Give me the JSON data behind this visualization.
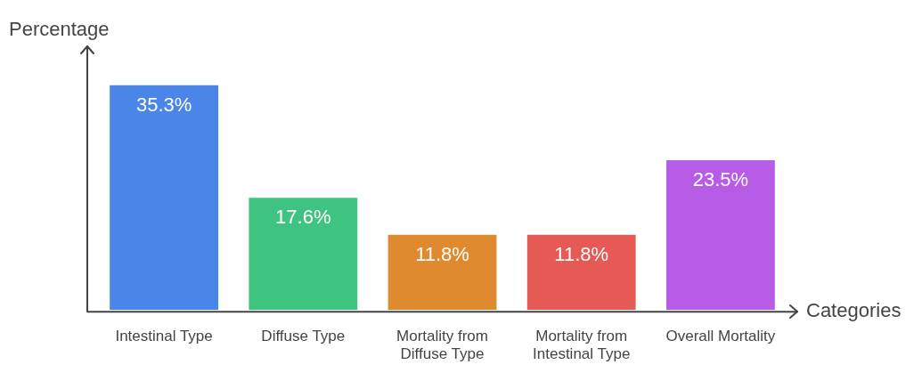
{
  "chart_data": {
    "type": "bar",
    "xlabel": "Categories",
    "ylabel": "Percentage",
    "categories": [
      "Intestinal Type",
      "Diffuse Type",
      "Mortality from Diffuse Type",
      "Mortality from Intestinal Type",
      "Overall Mortality"
    ],
    "values": [
      35.3,
      17.6,
      11.8,
      11.8,
      23.5
    ],
    "value_labels": [
      "35.3%",
      "17.6%",
      "11.8%",
      "11.8%",
      "23.5%"
    ],
    "colors": [
      "#4a86e8",
      "#3fc380",
      "#e08a30",
      "#e55a55",
      "#b65ce6"
    ],
    "grid": false,
    "legend": false
  }
}
